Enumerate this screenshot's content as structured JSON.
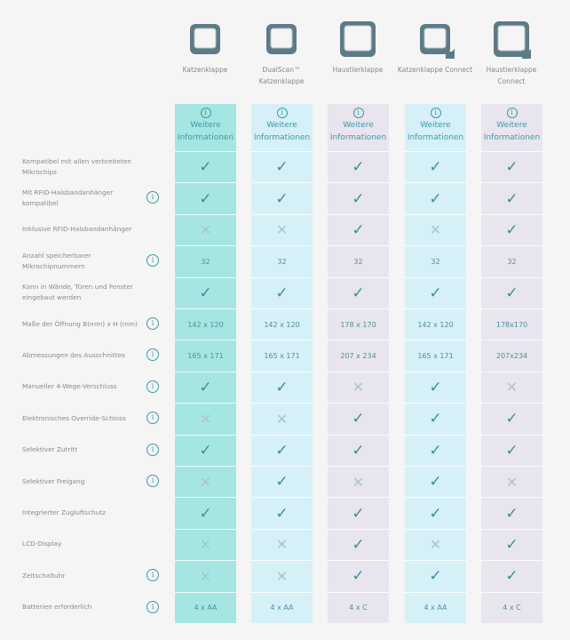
{
  "products": [
    {
      "name": "Katzenklappe",
      "icon": "cat-flap-icon",
      "more": "Weitere Informationen"
    },
    {
      "name": "DualScan™ Katzenklappe",
      "icon": "dualscan-cat-flap-icon",
      "more": "Weitere Informationen"
    },
    {
      "name": "Haustierklappe",
      "icon": "pet-door-icon",
      "more": "Weitere Informationen"
    },
    {
      "name": "Katzenklappe Connect",
      "icon": "cat-flap-connect-icon",
      "more": "Weitere Informationen"
    },
    {
      "name": "Haustierklappe Connect",
      "icon": "pet-door-connect-icon",
      "more": "Weitere Informationen"
    }
  ],
  "colors": {
    "col1": "#a6e6e2",
    "col_blue": "#d6f0f8",
    "col_lavender": "#e8e5ef",
    "accent": "#3e9aa5"
  },
  "rows": [
    {
      "label": "Kompatibel mit allen verbreiteten Mikrochips",
      "info": false,
      "values": [
        "check",
        "check",
        "check",
        "check",
        "check"
      ]
    },
    {
      "label": "Mit RFID-Halsbandanhänger kompatibel",
      "info": true,
      "values": [
        "check",
        "check",
        "check",
        "check",
        "check"
      ]
    },
    {
      "label": "Inklusive RFID-Halsbandanhänger",
      "info": false,
      "values": [
        "cross",
        "cross",
        "check",
        "cross",
        "check"
      ]
    },
    {
      "label": "Anzahl speicherbarer Mikrochipnummern",
      "info": true,
      "values": [
        "32",
        "32",
        "32",
        "32",
        "32"
      ]
    },
    {
      "label": "Kann in Wände, Türen und Fenster eingebaut werden",
      "info": false,
      "values": [
        "check",
        "check",
        "check",
        "check",
        "check"
      ]
    },
    {
      "label": "Maße der Öffnung B(mm) x H (mm)",
      "info": true,
      "values": [
        "142 x 120",
        "142 x 120",
        "178 x 170",
        "142 x 120",
        "178x170"
      ]
    },
    {
      "label": "Abmessungen des Ausschnittes",
      "info": true,
      "values": [
        "165 x 171",
        "165 x 171",
        "207 x 234",
        "165 x 171",
        "207x234"
      ]
    },
    {
      "label": "Manueller 4-Wege-Verschluss",
      "info": true,
      "values": [
        "check",
        "check",
        "cross",
        "check",
        "cross"
      ]
    },
    {
      "label": "Elektronisches Override-Schloss",
      "info": true,
      "values": [
        "cross",
        "cross",
        "check",
        "check",
        "check"
      ]
    },
    {
      "label": "Selektiver Zutritt",
      "info": true,
      "values": [
        "check",
        "check",
        "check",
        "check",
        "check"
      ]
    },
    {
      "label": "Selektiver Freigang",
      "info": true,
      "values": [
        "cross",
        "check",
        "cross",
        "check",
        "cross"
      ]
    },
    {
      "label": "Integrierter Zugluftschutz",
      "info": false,
      "values": [
        "check",
        "check",
        "check",
        "check",
        "check"
      ]
    },
    {
      "label": "LCD-Display",
      "info": false,
      "values": [
        "cross",
        "cross",
        "check",
        "cross",
        "check"
      ]
    },
    {
      "label": "Zeitschaltuhr",
      "info": true,
      "values": [
        "cross",
        "cross",
        "check",
        "check",
        "check"
      ]
    },
    {
      "label": "Batterien erforderlich",
      "info": true,
      "values": [
        "4 x AA",
        "4 x AA",
        "4 x C",
        "4 x AA",
        "4 x C"
      ]
    }
  ]
}
